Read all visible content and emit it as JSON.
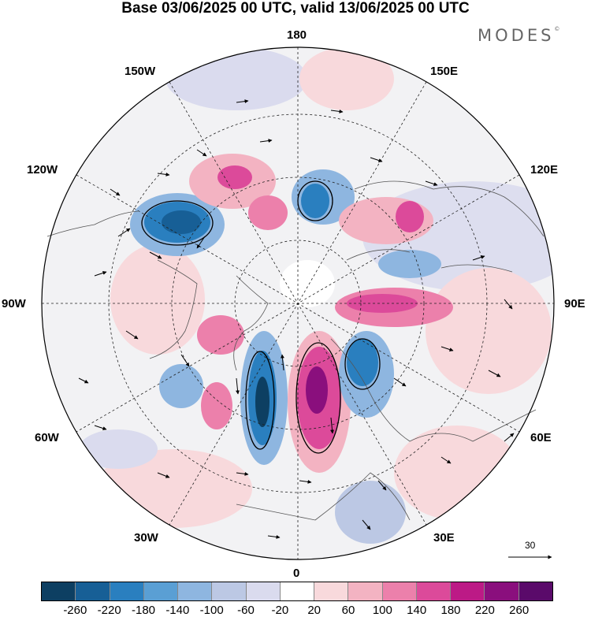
{
  "title": "Base 03/06/2025 00 UTC, valid 13/06/2025 00 UTC",
  "brand": {
    "name": "MODES",
    "mark": "©"
  },
  "map": {
    "projection": "north polar stereographic",
    "longitude_labels": {
      "top": "180",
      "top_left": "150W",
      "top_right": "150E",
      "upper_left": "120W",
      "upper_right": "120E",
      "left": "90W",
      "right": "90E",
      "lower_left": "60W",
      "lower_right": "60E",
      "bottom_left": "30W",
      "bottom_right": "30E",
      "bottom": "0"
    },
    "wind_reference": "30"
  },
  "colorbar": {
    "ticks": [
      "-260",
      "-220",
      "-180",
      "-140",
      "-100",
      "-60",
      "-20",
      "20",
      "60",
      "100",
      "140",
      "180",
      "220",
      "260"
    ],
    "colors": [
      "#0d3f62",
      "#175f96",
      "#2a7fbf",
      "#5a9fd4",
      "#8eb6e0",
      "#bcc8e4",
      "#dadbee",
      "#ffffff",
      "#f8d9dc",
      "#f3b3c2",
      "#ec80ab",
      "#dc4a9a",
      "#bc1a86",
      "#8a0f7d",
      "#5a0a6a"
    ]
  }
}
